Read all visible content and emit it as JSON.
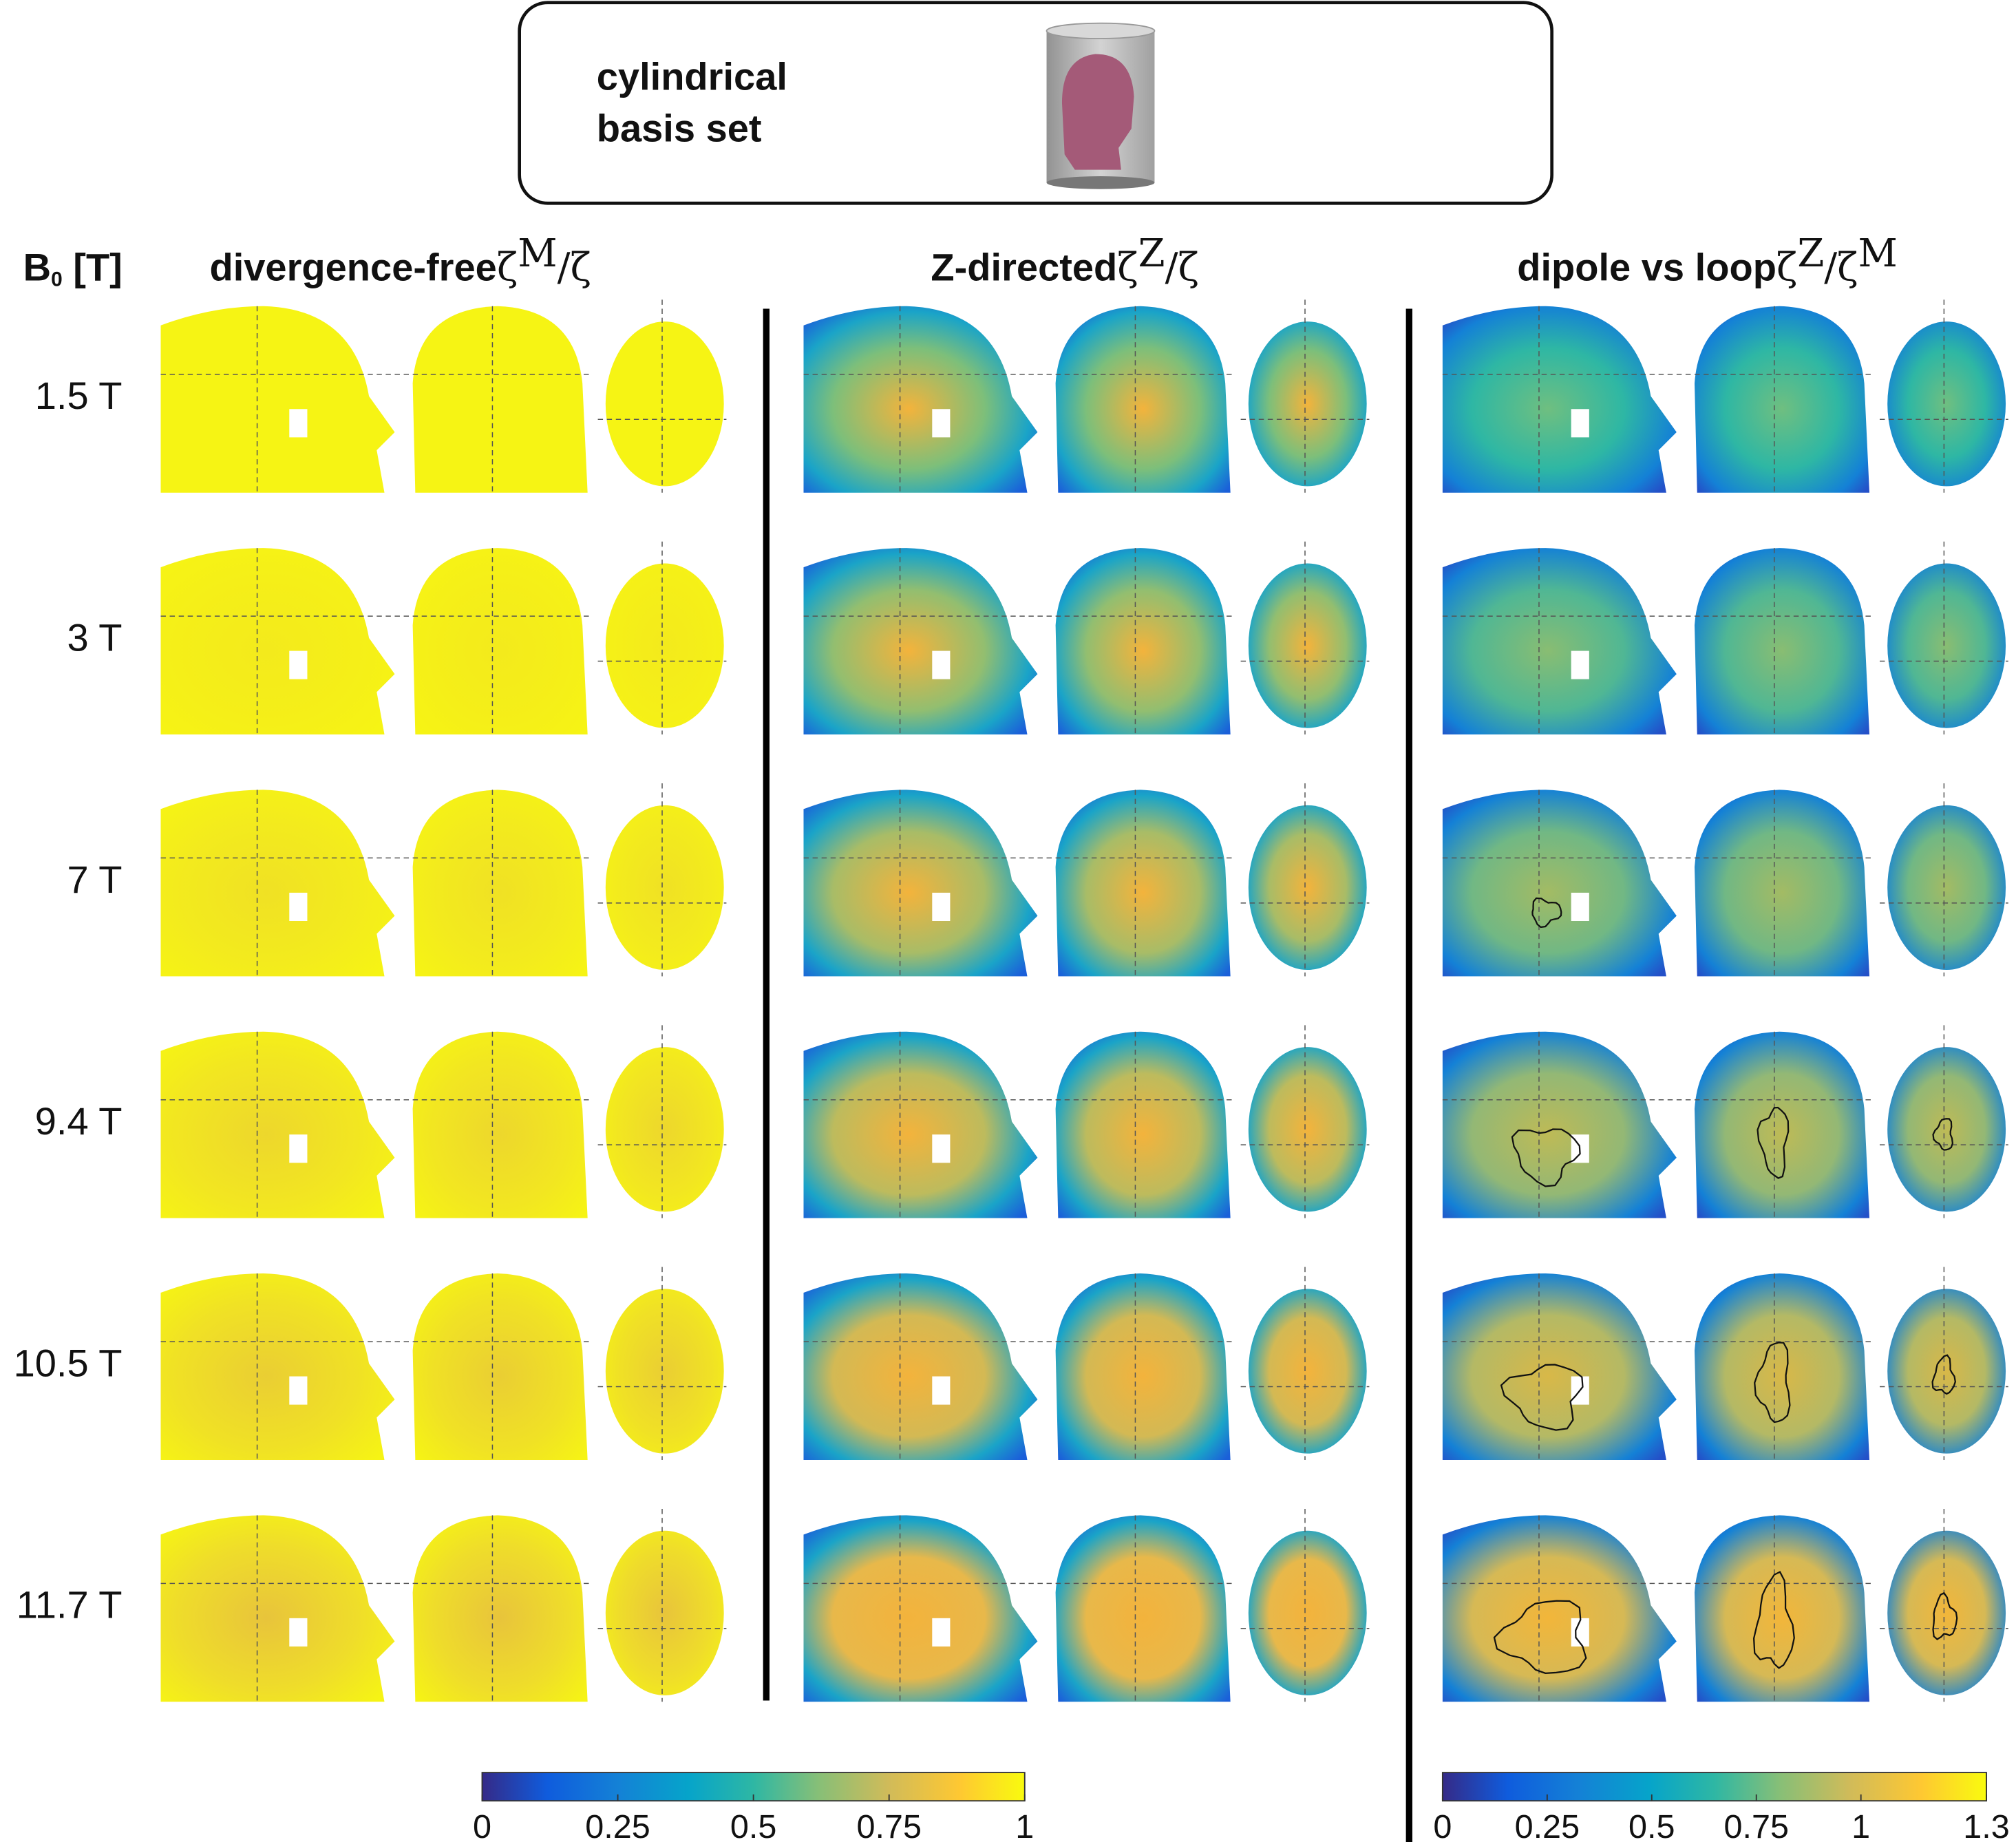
{
  "header_box": {
    "lines": [
      "cylindrical",
      "basis set"
    ]
  },
  "field_label": {
    "parts": [
      {
        "text": "B"
      },
      {
        "text": "0",
        "sub": true
      },
      {
        "text": " [T]"
      }
    ]
  },
  "columns": [
    {
      "title": "divergence-free",
      "formula": [
        {
          "text": "ζ"
        },
        {
          "text": "M",
          "sup": true
        },
        {
          "text": "/ζ"
        }
      ]
    },
    {
      "title": "Z-directed",
      "formula": [
        {
          "text": "ζ"
        },
        {
          "text": "Z",
          "sup": true
        },
        {
          "text": "/ζ"
        }
      ]
    },
    {
      "title": "dipole vs loop",
      "formula": [
        {
          "text": "ζ"
        },
        {
          "text": "Z",
          "sup": true
        },
        {
          "text": "/ζ"
        },
        {
          "text": "M",
          "sup": true
        }
      ]
    }
  ],
  "rows": [
    "1.5 T",
    "3 T",
    "7 T",
    "9.4 T",
    "10.5 T",
    "11.7 T"
  ],
  "colorbars": [
    {
      "lim": [
        0,
        1
      ],
      "ticks": [
        0,
        0.25,
        0.5,
        0.75,
        1
      ]
    },
    {
      "lim": [
        0,
        1.3
      ],
      "ticks": [
        0,
        0.25,
        0.5,
        0.75,
        1,
        1.3
      ]
    }
  ]
}
